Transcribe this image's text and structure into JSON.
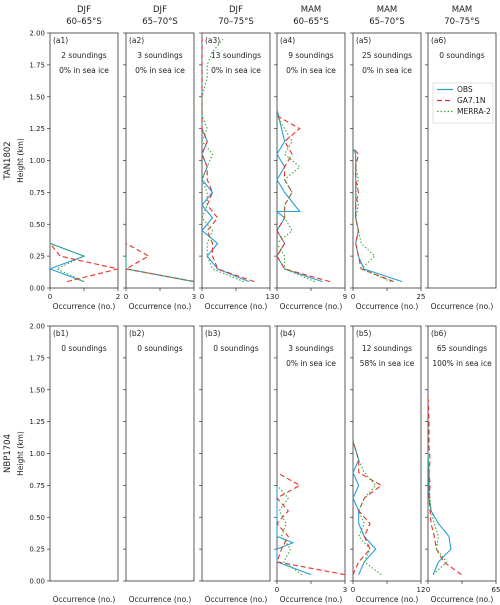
{
  "column_headers": [
    {
      "season": "DJF",
      "lat": "60–65°S"
    },
    {
      "season": "DJF",
      "lat": "65–70°S"
    },
    {
      "season": "DJF",
      "lat": "70–75°S"
    },
    {
      "season": "MAM",
      "lat": "60–65°S"
    },
    {
      "season": "MAM",
      "lat": "65–70°S"
    },
    {
      "season": "MAM",
      "lat": "70–75°S"
    }
  ],
  "row_labels": [
    "TAN1802",
    "NBP1704"
  ],
  "ylabel": "Height (km)",
  "xlabel": "Occurrence (no.)",
  "y_ticks": [
    "0.00",
    "0.25",
    "0.50",
    "0.75",
    "1.00",
    "1.25",
    "1.50",
    "1.75",
    "2.00"
  ],
  "legend": [
    {
      "name": "OBS",
      "color": "#2a9fd8",
      "dash": "solid"
    },
    {
      "name": "GA7.1N",
      "color": "#e8302a",
      "dash": "dashed"
    },
    {
      "name": "MERRA-2",
      "color": "#3aa53a",
      "dash": "dotted"
    }
  ],
  "colors": {
    "obs": "#2a9fd8",
    "ga71n": "#e8302a",
    "merra2": "#3aa53a"
  },
  "chart_data": [
    {
      "type": "line",
      "panel": "(a1)",
      "soundings": "2 soundings",
      "seaice": "0% in sea ice",
      "xlim": [
        0,
        2
      ],
      "xticks": [
        "0",
        "2"
      ],
      "ylim": [
        0,
        2
      ],
      "series": [
        {
          "name": "OBS",
          "x": [
            1,
            0,
            1,
            0
          ],
          "y": [
            0.05,
            0.15,
            0.25,
            0.35
          ]
        },
        {
          "name": "GA7.1N",
          "x": [
            0.5,
            2,
            0.3,
            0
          ],
          "y": [
            0.05,
            0.15,
            0.25,
            0.35
          ]
        },
        {
          "name": "MERRA-2",
          "x": [
            1,
            0.2,
            1,
            0
          ],
          "y": [
            0.05,
            0.15,
            0.25,
            0.35
          ]
        }
      ]
    },
    {
      "type": "line",
      "panel": "(a2)",
      "soundings": "3 soundings",
      "seaice": "0% in sea ice",
      "xlim": [
        0,
        3
      ],
      "xticks": [
        "0",
        "3"
      ],
      "ylim": [
        0,
        2
      ],
      "series": [
        {
          "name": "OBS",
          "x": [
            3,
            0,
            0
          ],
          "y": [
            0.05,
            0.15,
            0.25
          ]
        },
        {
          "name": "GA7.1N",
          "x": [
            3,
            0,
            1,
            0
          ],
          "y": [
            0.05,
            0.15,
            0.25,
            0.35
          ]
        },
        {
          "name": "MERRA-2",
          "x": [
            3,
            0,
            0
          ],
          "y": [
            0.05,
            0.15,
            0.25
          ]
        }
      ]
    },
    {
      "type": "line",
      "panel": "(a3)",
      "soundings": "13 soundings",
      "seaice": "0% in sea ice",
      "xlim": [
        0,
        13
      ],
      "xticks": [
        "0",
        "13"
      ],
      "ylim": [
        0,
        2
      ],
      "series": [
        {
          "name": "OBS",
          "x": [
            9,
            3,
            1,
            3,
            0,
            2,
            0,
            2,
            0,
            1,
            0,
            1,
            0,
            0
          ],
          "y": [
            0.05,
            0.15,
            0.25,
            0.35,
            0.45,
            0.55,
            0.65,
            0.75,
            0.85,
            0.95,
            1.05,
            1.15,
            1.25,
            2.0
          ]
        },
        {
          "name": "GA7.1N",
          "x": [
            10,
            3,
            2,
            2,
            1,
            3,
            1,
            2,
            1,
            1,
            0,
            1,
            0,
            0
          ],
          "y": [
            0.05,
            0.15,
            0.25,
            0.35,
            0.45,
            0.55,
            0.65,
            0.75,
            0.85,
            0.95,
            1.05,
            1.15,
            1.25,
            2.0
          ]
        },
        {
          "name": "MERRA-2",
          "x": [
            8,
            2,
            1,
            1,
            2,
            0,
            1,
            1,
            0,
            1,
            2,
            0,
            1,
            0,
            0,
            1,
            1,
            2,
            4
          ],
          "y": [
            0.05,
            0.15,
            0.25,
            0.35,
            0.45,
            0.55,
            0.65,
            0.75,
            0.85,
            0.95,
            1.05,
            1.15,
            1.25,
            1.35,
            1.5,
            1.65,
            1.75,
            1.85,
            1.95
          ]
        }
      ]
    },
    {
      "type": "line",
      "panel": "(a4)",
      "soundings": "9 soundings",
      "seaice": "0% in sea ice",
      "xlim": [
        0,
        9
      ],
      "xticks": [
        "0",
        "9"
      ],
      "ylim": [
        0,
        2
      ],
      "series": [
        {
          "name": "OBS",
          "x": [
            6,
            1,
            0,
            1,
            0,
            1,
            0,
            3,
            1,
            0,
            1,
            0,
            1,
            0
          ],
          "y": [
            0.05,
            0.15,
            0.25,
            0.35,
            0.45,
            0.55,
            0.6,
            0.6,
            0.75,
            0.85,
            0.95,
            1.05,
            1.15,
            1.4
          ]
        },
        {
          "name": "GA7.1N",
          "x": [
            7,
            1,
            0,
            1,
            0,
            1,
            1,
            2,
            1,
            1,
            2,
            1,
            3,
            0
          ],
          "y": [
            0.05,
            0.15,
            0.25,
            0.35,
            0.45,
            0.55,
            0.65,
            0.75,
            0.85,
            0.95,
            1.05,
            1.15,
            1.25,
            1.35
          ]
        },
        {
          "name": "MERRA-2",
          "x": [
            5,
            1,
            1,
            0,
            2,
            1,
            1,
            2,
            1,
            3,
            1,
            2,
            1,
            0
          ],
          "y": [
            0.05,
            0.15,
            0.25,
            0.35,
            0.45,
            0.55,
            0.65,
            0.75,
            0.85,
            0.95,
            1.05,
            1.15,
            1.25,
            1.35
          ]
        }
      ]
    },
    {
      "type": "line",
      "panel": "(a5)",
      "soundings": "25 soundings",
      "seaice": "0% in sea ice",
      "xlim": [
        0,
        25
      ],
      "xticks": [
        "0",
        "25"
      ],
      "ylim": [
        0,
        2
      ],
      "series": [
        {
          "name": "OBS",
          "x": [
            18,
            4,
            2,
            1,
            2,
            1,
            1,
            1,
            1,
            1,
            1,
            0
          ],
          "y": [
            0.05,
            0.15,
            0.25,
            0.35,
            0.45,
            0.55,
            0.65,
            0.75,
            0.85,
            0.95,
            1.05,
            1.1
          ]
        },
        {
          "name": "GA7.1N",
          "x": [
            15,
            3,
            2,
            1,
            2,
            1,
            1,
            2,
            1,
            1,
            2,
            0
          ],
          "y": [
            0.05,
            0.15,
            0.25,
            0.35,
            0.45,
            0.55,
            0.65,
            0.75,
            0.85,
            0.95,
            1.05,
            1.1
          ]
        },
        {
          "name": "MERRA-2",
          "x": [
            14,
            3,
            8,
            3,
            2,
            1,
            2,
            1,
            2,
            1,
            1,
            0
          ],
          "y": [
            0.05,
            0.15,
            0.25,
            0.35,
            0.45,
            0.55,
            0.65,
            0.75,
            0.85,
            0.95,
            1.05,
            1.1
          ]
        }
      ]
    },
    {
      "type": "line",
      "panel": "(a6)",
      "soundings": "0 soundings",
      "seaice": "",
      "xlim": [
        0,
        1
      ],
      "xticks": [],
      "ylim": [
        0,
        2
      ],
      "series": []
    },
    {
      "type": "line",
      "panel": "(b1)",
      "soundings": "0 soundings",
      "seaice": "",
      "xlim": [
        0,
        1
      ],
      "xticks": [],
      "ylim": [
        0,
        2
      ],
      "series": []
    },
    {
      "type": "line",
      "panel": "(b2)",
      "soundings": "0 soundings",
      "seaice": "",
      "xlim": [
        0,
        1
      ],
      "xticks": [],
      "ylim": [
        0,
        2
      ],
      "series": []
    },
    {
      "type": "line",
      "panel": "(b3)",
      "soundings": "0 soundings",
      "seaice": "",
      "xlim": [
        0,
        1
      ],
      "xticks": [],
      "ylim": [
        0,
        2
      ],
      "series": []
    },
    {
      "type": "line",
      "panel": "(b4)",
      "soundings": "3 soundings",
      "seaice": "0% in sea ice",
      "xlim": [
        0,
        3
      ],
      "xticks": [
        "0",
        "3"
      ],
      "ylim": [
        0,
        2
      ],
      "series": [
        {
          "name": "OBS",
          "x": [
            1.5,
            0,
            0,
            0.7,
            0,
            0
          ],
          "y": [
            0.05,
            0.15,
            0.25,
            0.3,
            0.35,
            0.75
          ]
        },
        {
          "name": "GA7.1N",
          "x": [
            3,
            0,
            0.2,
            0.5,
            0,
            0.5,
            0,
            1.0,
            0
          ],
          "y": [
            0.05,
            0.15,
            0.25,
            0.35,
            0.45,
            0.55,
            0.65,
            0.75,
            0.85
          ]
        },
        {
          "name": "MERRA-2",
          "x": [
            1.1,
            0.3,
            0.6,
            0.2,
            0.4,
            0.1,
            0.5,
            0
          ],
          "y": [
            0.05,
            0.15,
            0.25,
            0.35,
            0.45,
            0.55,
            0.65,
            0.75
          ]
        }
      ]
    },
    {
      "type": "line",
      "panel": "(b5)",
      "soundings": "12 soundings",
      "seaice": "58% in sea ice",
      "xlim": [
        0,
        12
      ],
      "xticks": [
        "0",
        "12"
      ],
      "ylim": [
        0,
        2
      ],
      "series": [
        {
          "name": "OBS",
          "x": [
            1,
            2,
            4,
            2,
            1,
            1,
            0,
            1,
            0,
            1,
            0
          ],
          "y": [
            0.05,
            0.15,
            0.25,
            0.35,
            0.45,
            0.55,
            0.65,
            0.75,
            0.85,
            0.95,
            1.1
          ]
        },
        {
          "name": "GA7.1N",
          "x": [
            0,
            1,
            3,
            2,
            3,
            1,
            2,
            5,
            1,
            1,
            0
          ],
          "y": [
            0.05,
            0.15,
            0.25,
            0.35,
            0.45,
            0.55,
            0.65,
            0.75,
            0.85,
            0.95,
            1.1
          ]
        },
        {
          "name": "MERRA-2",
          "x": [
            5,
            2,
            3,
            1,
            2,
            1,
            2,
            4,
            2,
            1,
            0
          ],
          "y": [
            0.05,
            0.15,
            0.25,
            0.35,
            0.45,
            0.55,
            0.65,
            0.75,
            0.85,
            0.95,
            1.1
          ]
        }
      ]
    },
    {
      "type": "line",
      "panel": "(b6)",
      "soundings": "65 soundings",
      "seaice": "100% in sea ice",
      "xlim": [
        0,
        65
      ],
      "xticks": [
        "0",
        "65"
      ],
      "ylim": [
        0,
        2
      ],
      "series": [
        {
          "name": "OBS",
          "x": [
            5,
            10,
            22,
            20,
            10,
            3,
            1,
            1,
            1,
            0
          ],
          "y": [
            0.05,
            0.15,
            0.25,
            0.35,
            0.45,
            0.55,
            0.65,
            0.75,
            0.85,
            1.0
          ]
        },
        {
          "name": "GA7.1N",
          "x": [
            32,
            15,
            8,
            6,
            3,
            2,
            1,
            2,
            1,
            2,
            1,
            1,
            0
          ],
          "y": [
            0.05,
            0.15,
            0.25,
            0.35,
            0.45,
            0.55,
            0.65,
            0.75,
            0.85,
            0.95,
            1.05,
            1.25,
            1.45
          ]
        },
        {
          "name": "MERRA-2",
          "x": [
            5,
            18,
            8,
            10,
            6,
            3,
            2,
            1,
            1,
            0
          ],
          "y": [
            0.05,
            0.15,
            0.25,
            0.35,
            0.45,
            0.55,
            0.65,
            0.75,
            0.85,
            1.0
          ]
        }
      ]
    }
  ]
}
